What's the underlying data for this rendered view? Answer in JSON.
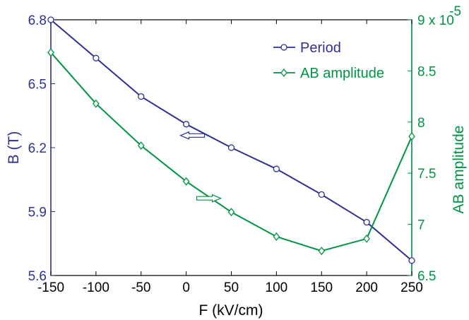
{
  "chart_data": {
    "type": "line",
    "xlabel": "F (kV/cm)",
    "ylabel_left": "B (T)",
    "ylabel_right": "AB amplitude",
    "xlim": [
      -150,
      250
    ],
    "ylim_left": [
      5.6,
      6.8
    ],
    "ylim_right": [
      6.5,
      9
    ],
    "x_ticks": [
      "-150",
      "-100",
      "-50",
      "0",
      "50",
      "100",
      "150",
      "200",
      "250"
    ],
    "y_left_ticks": [
      "5.6",
      "5.9",
      "6.2",
      "6.5",
      "6.8"
    ],
    "y_right_ticks": [
      "6.5",
      "7",
      "7.5",
      "8",
      "8.5",
      "9 x 10"
    ],
    "y_right_exponent": "-5",
    "grid": false,
    "legend_position": "top-right",
    "colors": {
      "period": "#2e3192",
      "amplitude": "#009444",
      "text": "#000000"
    },
    "series": [
      {
        "name": "Period",
        "axis": "left",
        "marker": "circle",
        "color": "#2e3192",
        "x": [
          -150,
          -100,
          -50,
          0,
          50,
          100,
          150,
          200,
          250
        ],
        "y": [
          6.8,
          6.62,
          6.44,
          6.31,
          6.2,
          6.1,
          5.98,
          5.85,
          5.67
        ]
      },
      {
        "name": "AB amplitude",
        "axis": "right",
        "marker": "diamond",
        "color": "#009444",
        "x": [
          -150,
          -100,
          -50,
          0,
          50,
          100,
          150,
          200,
          250
        ],
        "y": [
          8.68,
          8.18,
          7.77,
          7.42,
          7.12,
          6.88,
          6.74,
          6.86,
          7.86
        ]
      }
    ],
    "annotations": [
      {
        "type": "arrow",
        "direction": "left",
        "axis": "left",
        "x": 7,
        "y": 6.257,
        "color": "#2e3192"
      },
      {
        "type": "arrow",
        "direction": "right",
        "axis": "right",
        "x": 25,
        "y": 7.255,
        "color": "#009444"
      }
    ]
  }
}
